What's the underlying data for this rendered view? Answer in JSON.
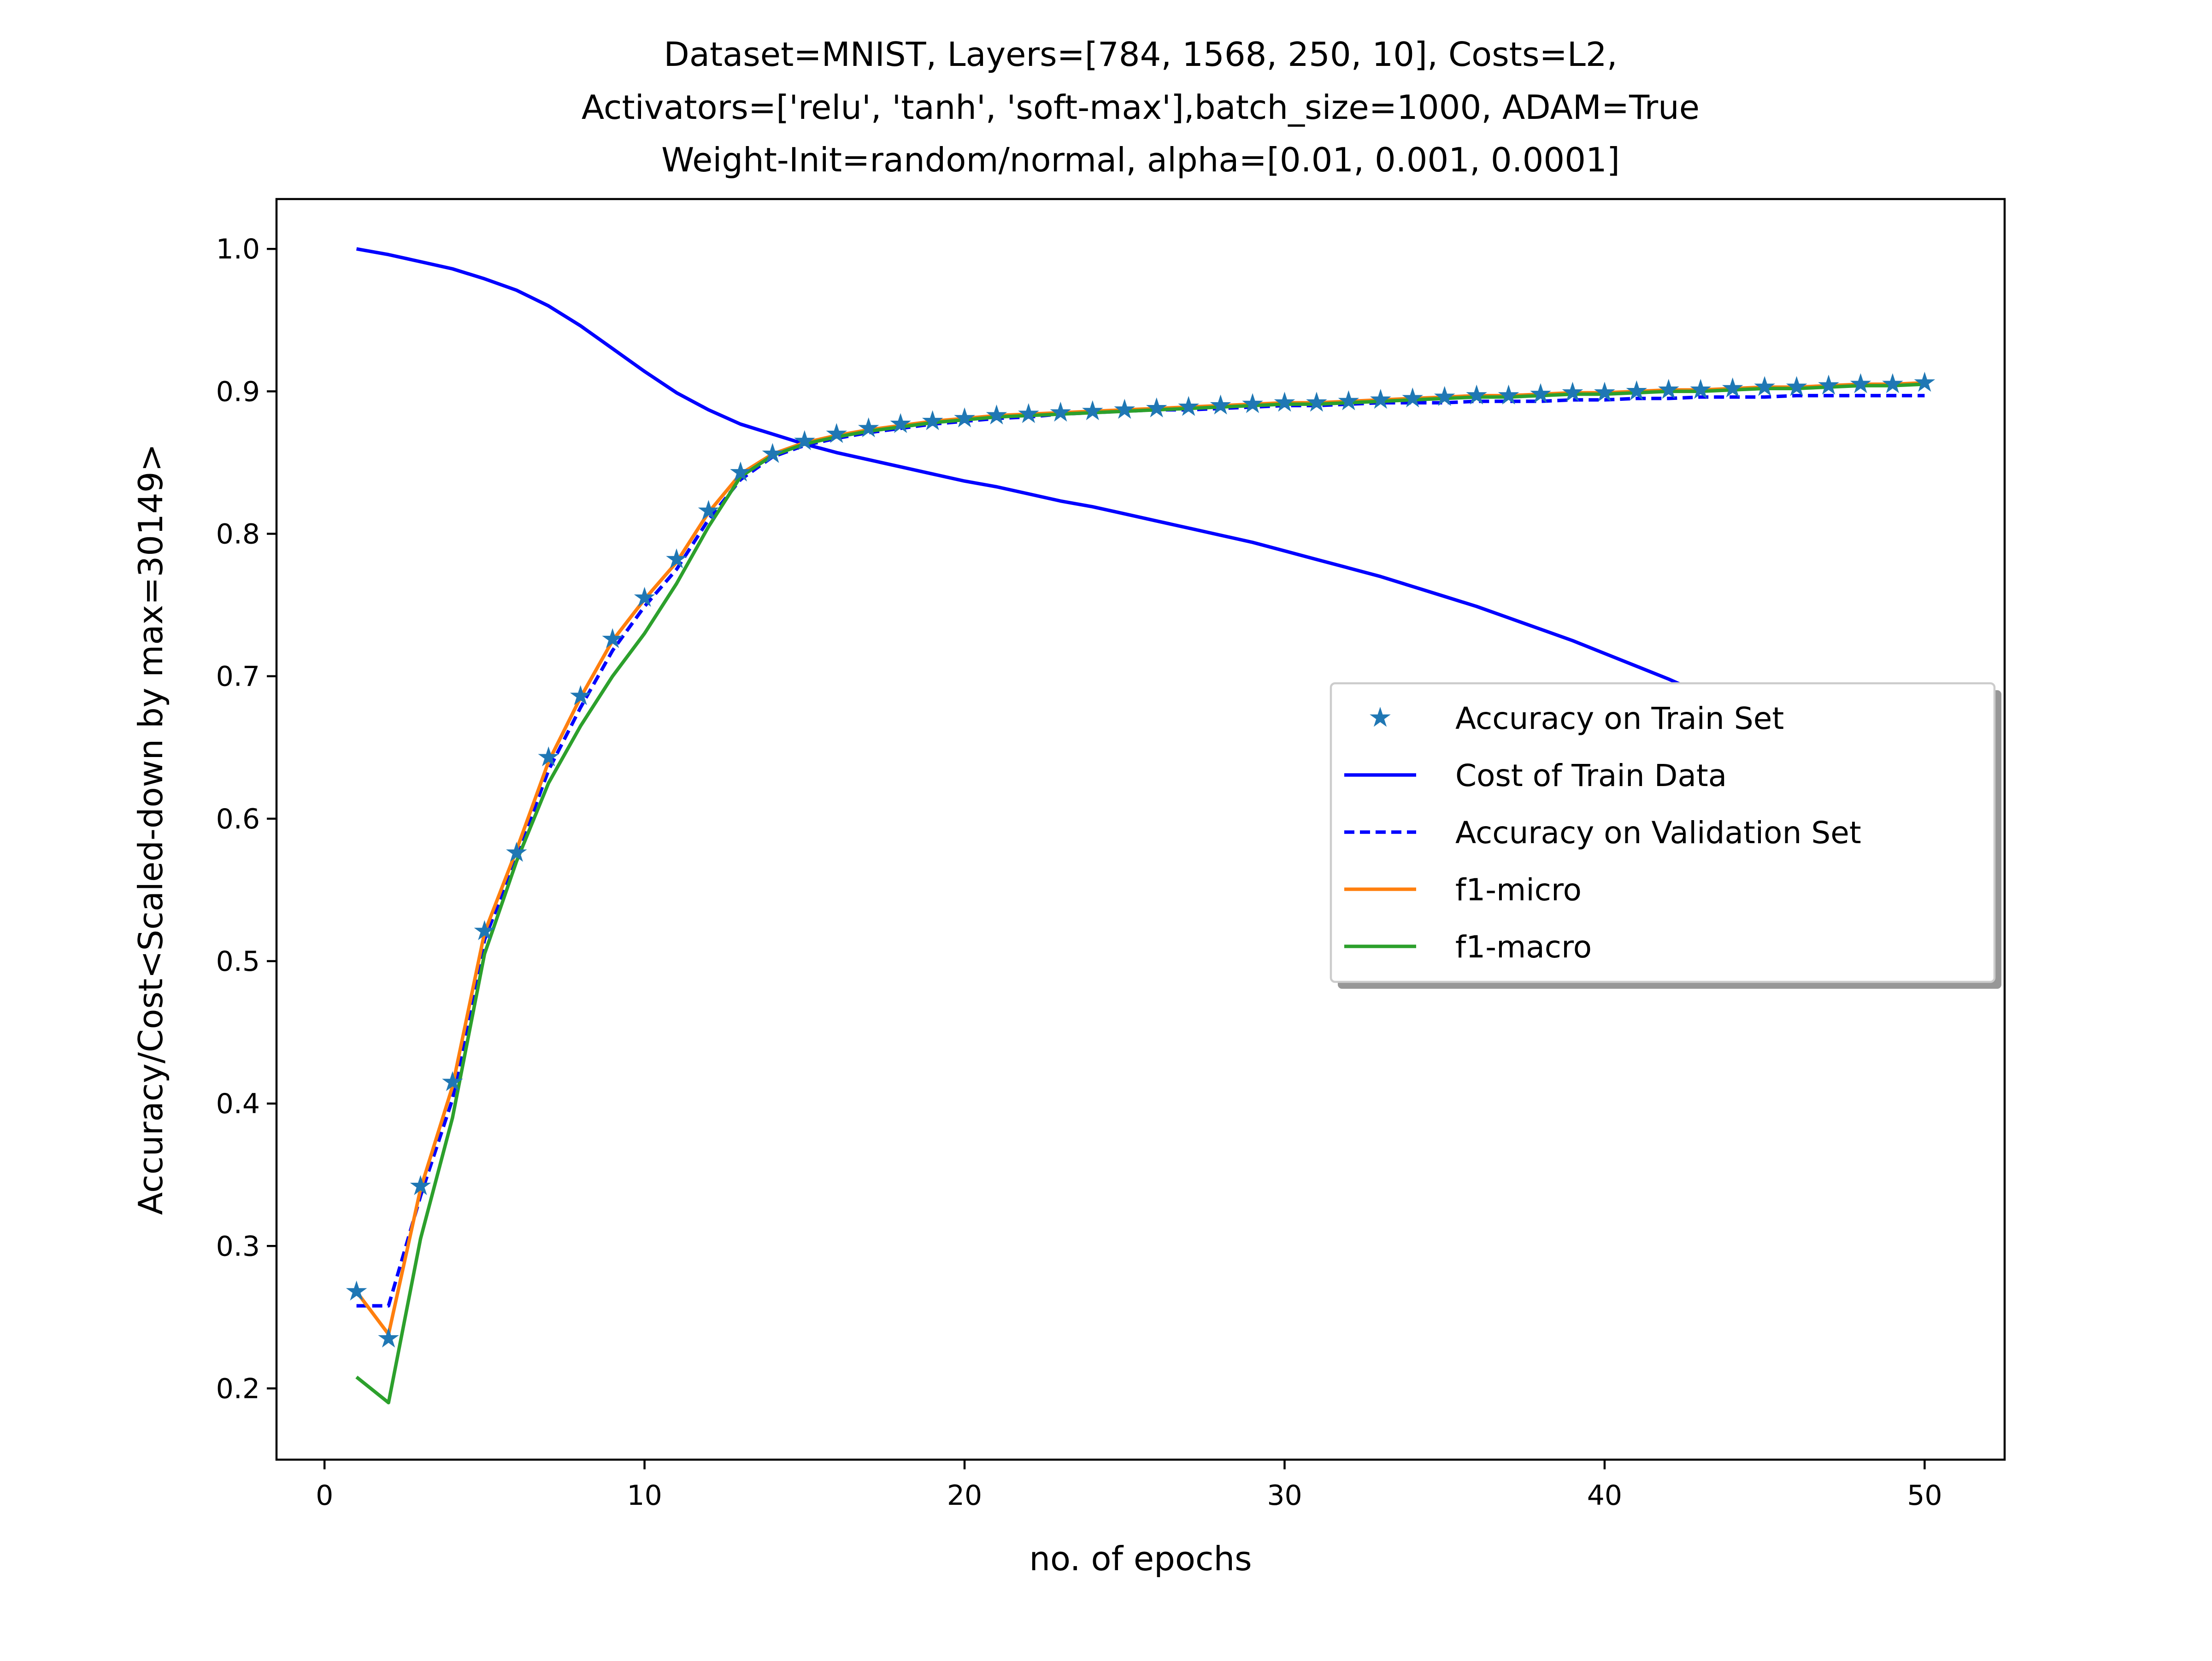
{
  "chart_data": {
    "type": "line",
    "title": [
      "Dataset=MNIST, Layers=[784, 1568, 250, 10], Costs=L2,",
      "Activators=['relu', 'tanh', 'soft-max'],batch_size=1000, ADAM=True",
      "Weight-Init=random/normal, alpha=[0.01, 0.001, 0.0001]"
    ],
    "xlabel": "no. of epochs",
    "ylabel": "Accuracy/Cost<Scaled-down by max=30149>",
    "xlim": [
      -1.5,
      52.5
    ],
    "ylim": [
      0.15,
      1.035
    ],
    "xticks": [
      0,
      10,
      20,
      30,
      40,
      50
    ],
    "yticks": [
      0.2,
      0.3,
      0.4,
      0.5,
      0.6,
      0.7,
      0.8,
      0.9,
      1.0
    ],
    "grid": false,
    "legend_position": "center-right",
    "x": [
      1,
      2,
      3,
      4,
      5,
      6,
      7,
      8,
      9,
      10,
      11,
      12,
      13,
      14,
      15,
      16,
      17,
      18,
      19,
      20,
      21,
      22,
      23,
      24,
      25,
      26,
      27,
      28,
      29,
      30,
      31,
      32,
      33,
      34,
      35,
      36,
      37,
      38,
      39,
      40,
      41,
      42,
      43,
      44,
      45,
      46,
      47,
      48,
      49,
      50
    ],
    "series": [
      {
        "name": "Accuracy on Train Set",
        "style": "markers",
        "marker": "star",
        "color": "#1f77b4",
        "values": [
          0.268,
          0.235,
          0.342,
          0.415,
          0.521,
          0.576,
          0.643,
          0.686,
          0.726,
          0.755,
          0.782,
          0.816,
          0.843,
          0.856,
          0.865,
          0.87,
          0.874,
          0.877,
          0.879,
          0.881,
          0.883,
          0.884,
          0.885,
          0.886,
          0.887,
          0.888,
          0.889,
          0.89,
          0.891,
          0.892,
          0.892,
          0.893,
          0.894,
          0.895,
          0.896,
          0.897,
          0.897,
          0.898,
          0.899,
          0.899,
          0.9,
          0.901,
          0.901,
          0.902,
          0.903,
          0.903,
          0.904,
          0.905,
          0.905,
          0.906
        ]
      },
      {
        "name": "Cost of Train Data",
        "style": "solid",
        "color": "#0000ff",
        "values": [
          1.0,
          0.996,
          0.991,
          0.986,
          0.979,
          0.971,
          0.96,
          0.946,
          0.93,
          0.914,
          0.899,
          0.887,
          0.877,
          0.87,
          0.863,
          0.857,
          0.852,
          0.847,
          0.842,
          0.837,
          0.833,
          0.828,
          0.823,
          0.819,
          0.814,
          0.809,
          0.804,
          0.799,
          0.794,
          0.788,
          0.782,
          0.776,
          0.77,
          0.763,
          0.756,
          0.749,
          0.741,
          0.733,
          0.725,
          0.716,
          0.707,
          0.698,
          0.688,
          0.678,
          0.668,
          0.657,
          0.646,
          0.635,
          0.623,
          0.611
        ]
      },
      {
        "name": "Accuracy on Validation Set",
        "style": "dashed",
        "color": "#0000ff",
        "values": [
          0.258,
          0.258,
          0.335,
          0.403,
          0.515,
          0.573,
          0.634,
          0.678,
          0.718,
          0.749,
          0.775,
          0.81,
          0.838,
          0.854,
          0.862,
          0.867,
          0.871,
          0.874,
          0.877,
          0.879,
          0.881,
          0.882,
          0.884,
          0.885,
          0.886,
          0.887,
          0.887,
          0.888,
          0.889,
          0.89,
          0.89,
          0.891,
          0.892,
          0.892,
          0.892,
          0.893,
          0.893,
          0.893,
          0.894,
          0.894,
          0.895,
          0.895,
          0.896,
          0.896,
          0.896,
          0.897,
          0.897,
          0.897,
          0.897,
          0.897
        ]
      },
      {
        "name": "f1-micro",
        "style": "solid",
        "color": "#ff7f0e",
        "values": [
          0.268,
          0.238,
          0.34,
          0.412,
          0.52,
          0.578,
          0.64,
          0.685,
          0.725,
          0.754,
          0.78,
          0.815,
          0.842,
          0.856,
          0.864,
          0.869,
          0.873,
          0.876,
          0.879,
          0.881,
          0.883,
          0.884,
          0.885,
          0.886,
          0.887,
          0.888,
          0.889,
          0.89,
          0.891,
          0.892,
          0.892,
          0.893,
          0.894,
          0.895,
          0.896,
          0.897,
          0.897,
          0.898,
          0.899,
          0.899,
          0.9,
          0.901,
          0.901,
          0.902,
          0.903,
          0.903,
          0.904,
          0.905,
          0.905,
          0.906
        ]
      },
      {
        "name": "f1-macro",
        "style": "solid",
        "color": "#2ca02c",
        "values": [
          0.208,
          0.19,
          0.305,
          0.39,
          0.505,
          0.57,
          0.625,
          0.665,
          0.7,
          0.73,
          0.765,
          0.805,
          0.84,
          0.855,
          0.863,
          0.868,
          0.872,
          0.875,
          0.878,
          0.88,
          0.882,
          0.883,
          0.884,
          0.885,
          0.886,
          0.887,
          0.888,
          0.889,
          0.89,
          0.891,
          0.891,
          0.892,
          0.893,
          0.894,
          0.895,
          0.896,
          0.896,
          0.897,
          0.898,
          0.898,
          0.899,
          0.9,
          0.9,
          0.901,
          0.902,
          0.902,
          0.903,
          0.904,
          0.904,
          0.905
        ]
      }
    ]
  }
}
